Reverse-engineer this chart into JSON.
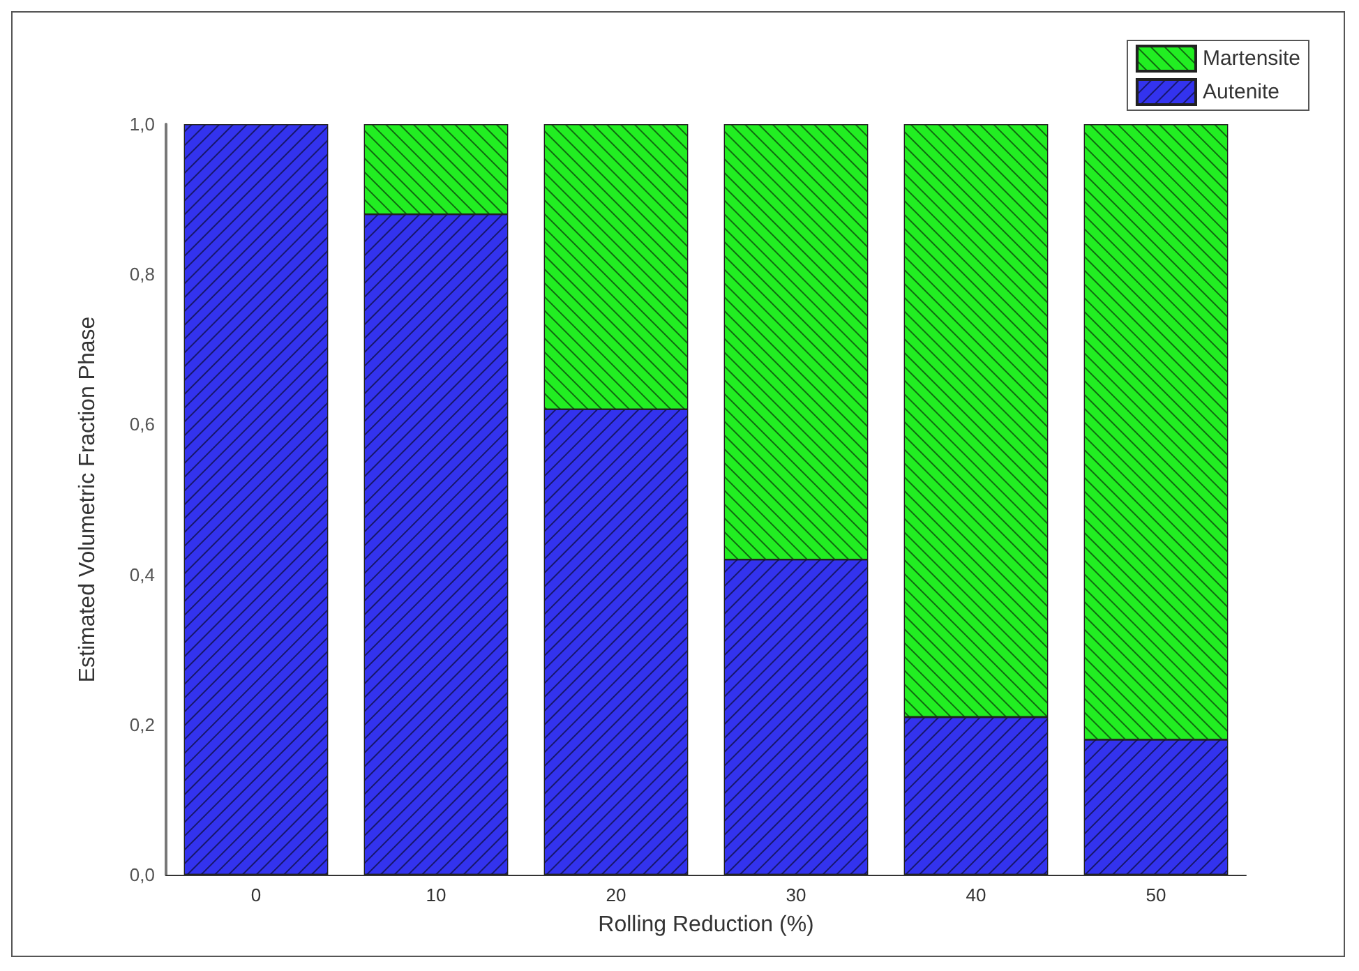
{
  "chart_data": {
    "type": "bar",
    "stacked": true,
    "xlabel": "Rolling Reduction (%)",
    "ylabel": "Estimated Volumetric Fraction Phase",
    "categories": [
      "0",
      "10",
      "20",
      "30",
      "40",
      "50"
    ],
    "series": [
      {
        "name": "Autenite",
        "color": "#3333ee",
        "values": [
          1.0,
          0.88,
          0.62,
          0.42,
          0.21,
          0.18
        ]
      },
      {
        "name": "Martensite",
        "color": "#22ee22",
        "values": [
          null,
          0.12,
          0.38,
          0.58,
          0.79,
          0.82
        ]
      }
    ],
    "ylim": [
      0,
      1
    ],
    "yticks": [
      {
        "value": 0,
        "label": "0,0"
      },
      {
        "value": 0.2,
        "label": "0,2"
      },
      {
        "value": 0.4,
        "label": "0,4"
      },
      {
        "value": 0.6,
        "label": "0,6"
      },
      {
        "value": 0.8,
        "label": "0,8"
      },
      {
        "value": 1,
        "label": "1,0"
      }
    ],
    "grid": false,
    "legend": "top right"
  }
}
